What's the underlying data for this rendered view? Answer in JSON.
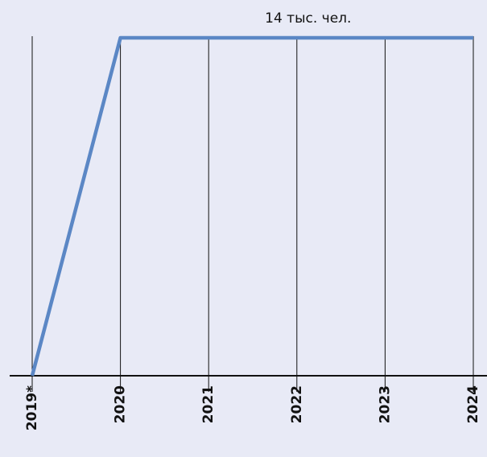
{
  "chart_data": {
    "type": "line",
    "categories": [
      "2019*",
      "2020",
      "2021",
      "2022",
      "2023",
      "2024"
    ],
    "values": [
      0,
      14,
      14,
      14,
      14,
      14
    ],
    "value_labels": [
      null,
      null,
      null,
      "14 тыс. чел.",
      null,
      null
    ],
    "color": "#5b87c5",
    "ylim": [
      0,
      14
    ]
  }
}
